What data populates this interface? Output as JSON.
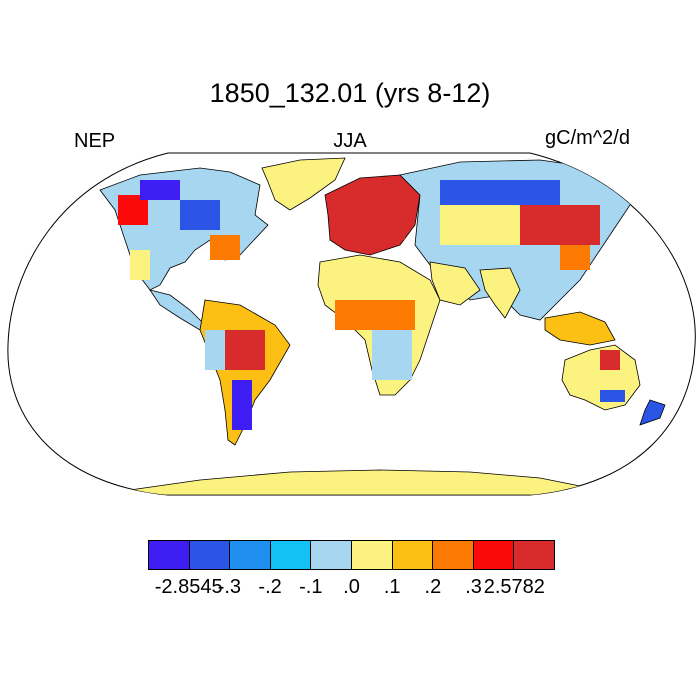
{
  "title": "1850_132.01 (yrs 8-12)",
  "variable": "NEP",
  "season": "JJA",
  "units": "gC/m^2/d",
  "projection": "robinson",
  "colorbar": {
    "colors": [
      "#3e1ef2",
      "#2a55e6",
      "#1f8ff0",
      "#14c1f7",
      "#a6d6f0",
      "#fcf280",
      "#fcc014",
      "#fc7a02",
      "#fc0a0a",
      "#d82c2c"
    ],
    "labels": [
      "-2.8545",
      "-.3",
      "-.2",
      "-.1",
      ".0",
      ".1",
      ".2",
      ".3",
      "2.5782"
    ]
  },
  "land_colors": {
    "default": "#fcf280",
    "antarctica": "#fcf280",
    "ocean": "#ffffff",
    "coast": "#000000"
  }
}
